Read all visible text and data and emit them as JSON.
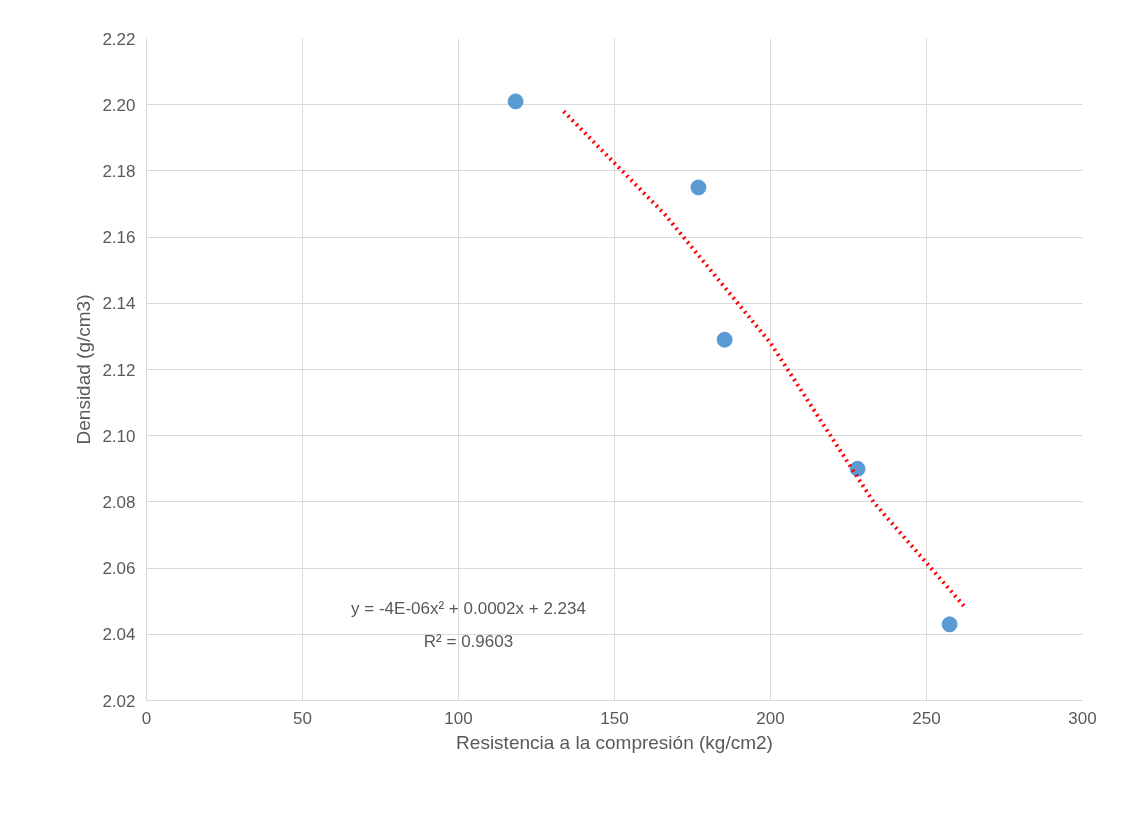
{
  "chart_data": {
    "type": "scatter",
    "xlabel": "Resistencia a la compresión (kg/cm2)",
    "ylabel": "Densidad (g/cm3)",
    "xlim": [
      0,
      300
    ],
    "xticks": [
      0,
      50,
      100,
      150,
      200,
      250,
      300
    ],
    "ylim": [
      2.02,
      2.22
    ],
    "yticks": [
      2.02,
      2.04,
      2.06,
      2.08,
      {
        "value": 2.1,
        "label": "2.10"
      },
      2.12,
      2.14,
      2.16,
      2.18,
      {
        "value": 2.2,
        "label": "2.20"
      },
      2.22
    ],
    "grid": true,
    "marker": "circle",
    "series": [
      {
        "color": "#5b9bd5",
        "x": [
          118.3,
          176.9,
          185.3,
          227.9,
          257.4
        ],
        "values": [
          2.201,
          2.175,
          2.129,
          2.09,
          2.043
        ]
      },
      {
        "type": "line",
        "color": "#ff0000",
        "line_style": "dotted",
        "marker": "none",
        "x": [
          133.7,
          166,
          200,
          233,
          262.5
        ],
        "values": [
          2.198,
          2.167,
          2.128,
          2.08,
          2.048
        ]
      }
    ],
    "annotations": [
      "y = -4E-06x² + 0.0002x + 2.234",
      "R² = 0.9603"
    ]
  }
}
